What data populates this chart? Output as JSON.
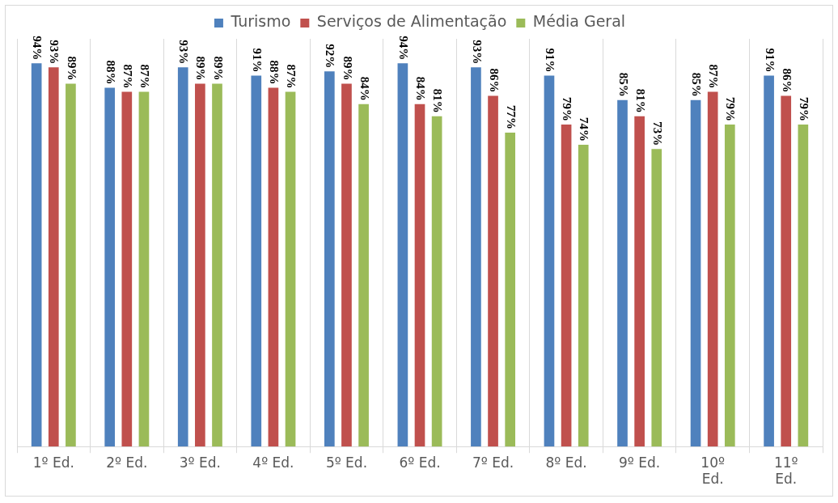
{
  "chart_data": {
    "type": "bar",
    "categories": [
      "1º Ed.",
      "2º Ed.",
      "3º Ed.",
      "4º Ed.",
      "5º Ed.",
      "6º Ed.",
      "7º Ed.",
      "8º Ed.",
      "9º Ed.",
      "10º Ed.",
      "11º Ed."
    ],
    "series": [
      {
        "name": "Turismo",
        "color": "#4f81bd",
        "values": [
          94,
          88,
          93,
          91,
          92,
          94,
          93,
          91,
          85,
          85,
          91
        ],
        "value_labels": [
          "94%",
          "88%",
          "93%",
          "91%",
          "92%",
          "94%",
          "93%",
          "91%",
          "85%",
          "85%",
          "91%"
        ]
      },
      {
        "name": "Serviços de Alimentação",
        "color": "#c0504d",
        "values": [
          93,
          87,
          89,
          88,
          89,
          84,
          86,
          79,
          81,
          87,
          86
        ],
        "value_labels": [
          "93%",
          "87%",
          "89%",
          "88%",
          "89%",
          "84%",
          "86%",
          "79%",
          "81%",
          "87%",
          "86%"
        ]
      },
      {
        "name": "Média Geral",
        "color": "#9bbb59",
        "values": [
          89,
          87,
          89,
          87,
          84,
          81,
          77,
          74,
          73,
          79,
          79
        ],
        "value_labels": [
          "89%",
          "87%",
          "89%",
          "87%",
          "84%",
          "81%",
          "77%",
          "74%",
          "73%",
          "79%",
          "79%"
        ]
      }
    ],
    "ylim": [
      0,
      100
    ],
    "grid": "x",
    "legend": "top",
    "tick_labels": "x"
  }
}
